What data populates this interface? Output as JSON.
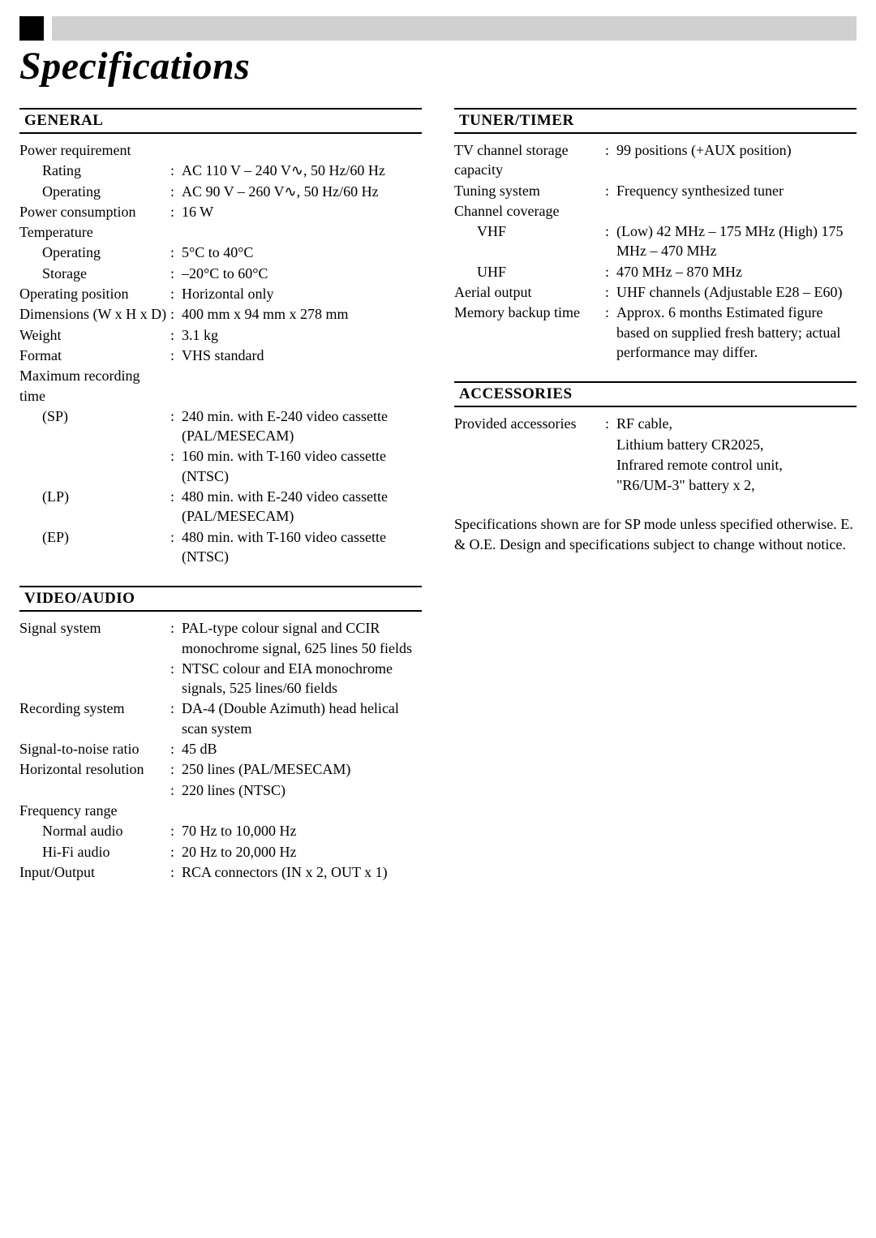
{
  "page": {
    "title": "Specifications"
  },
  "general": {
    "heading": "GENERAL",
    "power_requirement_label": "Power requirement",
    "rating_label": "Rating",
    "rating_value": "AC 110 V – 240 V∿, 50 Hz/60 Hz",
    "operating_label": "Operating",
    "operating_value": "AC 90 V – 260 V∿, 50 Hz/60 Hz",
    "power_consumption_label": "Power consumption",
    "power_consumption_value": "16 W",
    "temperature_label": "Temperature",
    "temp_operating_label": "Operating",
    "temp_operating_value": "5°C to 40°C",
    "temp_storage_label": "Storage",
    "temp_storage_value": "–20°C to 60°C",
    "operating_position_label": "Operating position",
    "operating_position_value": "Horizontal only",
    "dimensions_label": "Dimensions (W x H x D)",
    "dimensions_value": "400 mm x 94 mm x 278 mm",
    "weight_label": "Weight",
    "weight_value": "3.1 kg",
    "format_label": "Format",
    "format_value": "VHS standard",
    "max_recording_label": "Maximum recording time",
    "sp_label": "(SP)",
    "sp_value1": "240 min. with E-240 video cassette (PAL/MESECAM)",
    "sp_value2": "160 min. with T-160 video cassette (NTSC)",
    "lp_label": "(LP)",
    "lp_value": "480 min. with E-240 video cassette (PAL/MESECAM)",
    "ep_label": "(EP)",
    "ep_value": "480 min. with T-160 video cassette (NTSC)"
  },
  "video_audio": {
    "heading": "VIDEO/AUDIO",
    "signal_system_label": "Signal system",
    "signal_system_value1": "PAL-type colour signal and CCIR monochrome signal, 625 lines 50 fields",
    "signal_system_value2": "NTSC colour and EIA monochrome signals, 525 lines/60 fields",
    "recording_system_label": "Recording system",
    "recording_system_value": "DA-4 (Double Azimuth) head helical scan system",
    "snr_label": "Signal-to-noise ratio",
    "snr_value": "45 dB",
    "hres_label": "Horizontal resolution",
    "hres_value1": "250 lines (PAL/MESECAM)",
    "hres_value2": "220 lines (NTSC)",
    "freq_range_label": "Frequency range",
    "normal_audio_label": "Normal audio",
    "normal_audio_value": "70 Hz to 10,000 Hz",
    "hifi_audio_label": "Hi-Fi audio",
    "hifi_audio_value": "20 Hz to 20,000 Hz",
    "io_label": "Input/Output",
    "io_value": "RCA connectors (IN x 2, OUT x 1)"
  },
  "tuner_timer": {
    "heading": "TUNER/TIMER",
    "tv_storage_label": "TV channel storage capacity",
    "tv_storage_value": "99 positions (+AUX position)",
    "tuning_system_label": "Tuning system",
    "tuning_system_value": "Frequency synthesized tuner",
    "channel_coverage_label": "Channel coverage",
    "vhf_label": "VHF",
    "vhf_value": "(Low) 42 MHz – 175 MHz (High) 175 MHz – 470 MHz",
    "uhf_label": "UHF",
    "uhf_value": "470 MHz – 870 MHz",
    "aerial_output_label": "Aerial output",
    "aerial_output_value": "UHF channels (Adjustable E28 – E60)",
    "memory_backup_label": "Memory backup time",
    "memory_backup_value": "Approx. 6 months Estimated figure based on supplied fresh battery; actual performance may differ."
  },
  "accessories": {
    "heading": "ACCESSORIES",
    "provided_label": "Provided accessories",
    "provided_value1": "RF cable,",
    "provided_value2": "Lithium battery CR2025,",
    "provided_value3": "Infrared remote control unit,",
    "provided_value4": "\"R6/UM-3\" battery x 2,"
  },
  "footer": {
    "note": "Specifications shown are for SP mode unless specified otherwise. E. & O.E. Design and specifications subject to change without notice."
  }
}
